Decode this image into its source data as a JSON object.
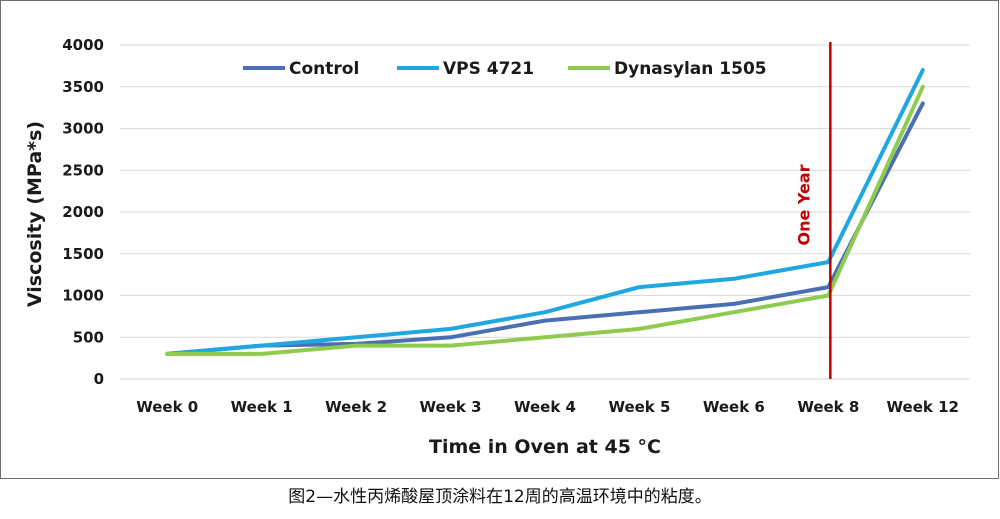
{
  "caption": "图2—水性丙烯酸屋顶涂料在12周的高温环境中的粘度。",
  "chart_data": {
    "type": "line",
    "title": "",
    "xlabel": "Time in Oven at 45 °C",
    "ylabel": "Viscosity (MPa*s)",
    "categories": [
      "Week 0",
      "Week 1",
      "Week 2",
      "Week 3",
      "Week 4",
      "Week 5",
      "Week 6",
      "Week 8",
      "Week 12"
    ],
    "ylim": [
      0,
      4000
    ],
    "yticks": [
      0,
      500,
      1000,
      1500,
      2000,
      2500,
      3000,
      3500,
      4000
    ],
    "grid": true,
    "legend_position": "top",
    "series": [
      {
        "name": "Control",
        "color": "#4a6fb3",
        "values": [
          300,
          400,
          420,
          500,
          700,
          800,
          900,
          1100,
          3300
        ]
      },
      {
        "name": "VPS 4721",
        "color": "#1ea7e0",
        "values": [
          300,
          400,
          500,
          600,
          800,
          1100,
          1200,
          1400,
          3700
        ]
      },
      {
        "name": "Dynasylan 1505",
        "color": "#8fcb4f",
        "values": [
          300,
          300,
          400,
          400,
          500,
          600,
          800,
          1000,
          3500
        ]
      }
    ],
    "annotation": {
      "label": "One Year",
      "category": "Week 8",
      "color": "#c00000"
    }
  }
}
